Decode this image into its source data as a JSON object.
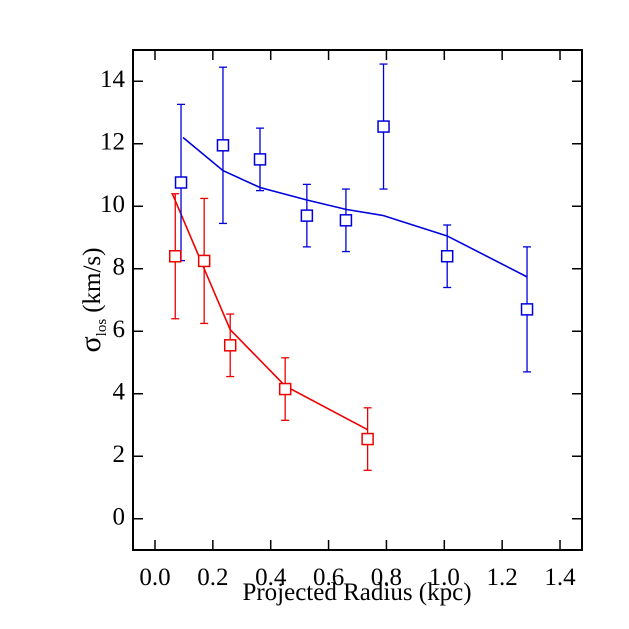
{
  "chart_data": {
    "type": "scatter",
    "xlabel": "Projected Radius (kpc)",
    "ylabel": {
      "symbol": "σ",
      "subscript": "los",
      "unit": "(km/s)"
    },
    "xlim": [
      -0.076,
      1.476
    ],
    "ylim": [
      -1,
      15
    ],
    "xticks": [
      {
        "value": 0.0,
        "label": "0.0"
      },
      {
        "value": 0.2,
        "label": "0.2"
      },
      {
        "value": 0.4,
        "label": "0.4"
      },
      {
        "value": 0.6,
        "label": "0.6"
      },
      {
        "value": 0.8,
        "label": "0.8"
      },
      {
        "value": 1.0,
        "label": "1.0"
      },
      {
        "value": 1.2,
        "label": "1.2"
      },
      {
        "value": 1.4,
        "label": "1.4"
      }
    ],
    "yticks": [
      0,
      2,
      4,
      6,
      8,
      10,
      12,
      14
    ],
    "series": [
      {
        "color": "#0000dd",
        "x": [
          0.09,
          0.235,
          0.363,
          0.525,
          0.66,
          0.79,
          1.01,
          1.286
        ],
        "values": [
          10.76,
          11.95,
          11.5,
          9.7,
          9.55,
          12.55,
          8.4,
          6.7
        ],
        "errors": [
          2.5,
          2.5,
          1.0,
          1.0,
          1.0,
          2.0,
          1.0,
          2.0
        ]
      },
      {
        "color": "#ee0000",
        "x": [
          0.07,
          0.17,
          0.26,
          0.45,
          0.735
        ],
        "values": [
          8.4,
          8.25,
          5.55,
          4.15,
          2.55
        ],
        "errors": [
          2.0,
          2.0,
          1.0,
          1.0,
          1.0
        ]
      }
    ],
    "lines": [
      {
        "color": "#0000dd",
        "x": [
          0.097,
          0.235,
          0.363,
          0.525,
          0.66,
          0.79,
          1.01,
          1.286
        ],
        "values": [
          12.2,
          11.14,
          10.6,
          10.2,
          9.9,
          9.7,
          9.05,
          7.74
        ]
      },
      {
        "color": "#ee0000",
        "x": [
          0.06,
          0.17,
          0.26,
          0.45,
          0.735
        ],
        "values": [
          10.4,
          8.0,
          6.05,
          4.25,
          2.85
        ]
      }
    ]
  }
}
